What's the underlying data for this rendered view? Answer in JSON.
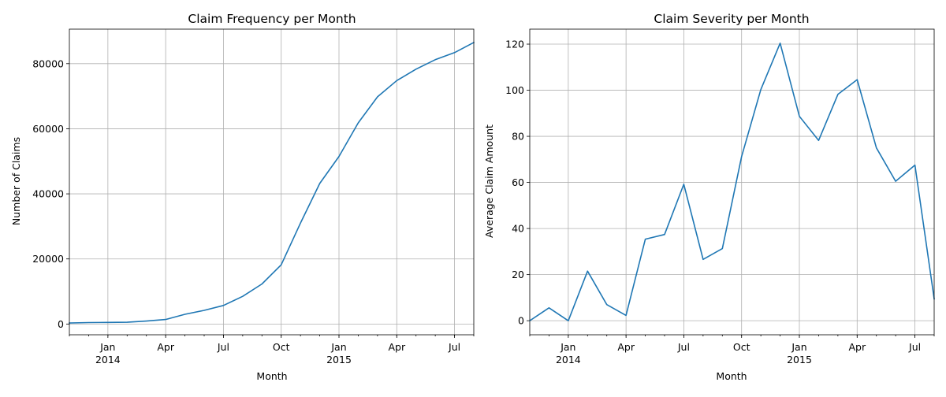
{
  "chart_data": [
    {
      "type": "line",
      "title": "Claim Frequency per Month",
      "xlabel": "Month",
      "ylabel": "Number of Claims",
      "x": [
        "2013-11",
        "2013-12",
        "2014-01",
        "2014-02",
        "2014-03",
        "2014-04",
        "2014-05",
        "2014-06",
        "2014-07",
        "2014-08",
        "2014-09",
        "2014-10",
        "2014-11",
        "2014-12",
        "2015-01",
        "2015-02",
        "2015-03",
        "2015-04",
        "2015-05",
        "2015-06",
        "2015-07",
        "2015-08"
      ],
      "series": [
        {
          "values": [
            300,
            450,
            500,
            550,
            900,
            1400,
            3000,
            4200,
            5700,
            8500,
            12300,
            18200,
            31000,
            43200,
            51500,
            61800,
            69800,
            74800,
            78300,
            81200,
            83400,
            86500
          ]
        }
      ],
      "xlim": [
        "2013-11",
        "2015-08"
      ],
      "ylim": [
        -3300,
        90600
      ],
      "yticks": [
        0,
        20000,
        40000,
        60000,
        80000
      ],
      "xticks": [
        {
          "date": "2014-01",
          "label": "Jan",
          "sublabel": "2014"
        },
        {
          "date": "2014-04",
          "label": "Apr",
          "sublabel": ""
        },
        {
          "date": "2014-07",
          "label": "Jul",
          "sublabel": ""
        },
        {
          "date": "2014-10",
          "label": "Oct",
          "sublabel": ""
        },
        {
          "date": "2015-01",
          "label": "Jan",
          "sublabel": "2015"
        },
        {
          "date": "2015-04",
          "label": "Apr",
          "sublabel": ""
        },
        {
          "date": "2015-07",
          "label": "Jul",
          "sublabel": ""
        }
      ],
      "grid": true,
      "color": "#1f77b4"
    },
    {
      "type": "line",
      "title": "Claim Severity per Month",
      "xlabel": "Month",
      "ylabel": "Average Claim Amount",
      "x": [
        "2013-11",
        "2013-12",
        "2014-01",
        "2014-02",
        "2014-03",
        "2014-04",
        "2014-05",
        "2014-06",
        "2014-07",
        "2014-08",
        "2014-09",
        "2014-10",
        "2014-11",
        "2014-12",
        "2015-01",
        "2015-02",
        "2015-03",
        "2015-04",
        "2015-05",
        "2015-06",
        "2015-07",
        "2015-08"
      ],
      "series": [
        {
          "values": [
            0,
            5.6,
            0,
            21.5,
            7.0,
            2.3,
            35.4,
            37.4,
            59.2,
            26.6,
            31.3,
            71.2,
            100.3,
            120.4,
            88.7,
            78.2,
            98.2,
            104.6,
            75.0,
            60.5,
            67.5,
            9.5
          ]
        }
      ],
      "xlim": [
        "2013-11",
        "2015-08"
      ],
      "ylim": [
        -6.1,
        126.5
      ],
      "yticks": [
        0,
        20,
        40,
        60,
        80,
        100,
        120
      ],
      "xticks": [
        {
          "date": "2014-01",
          "label": "Jan",
          "sublabel": "2014"
        },
        {
          "date": "2014-04",
          "label": "Apr",
          "sublabel": ""
        },
        {
          "date": "2014-07",
          "label": "Jul",
          "sublabel": ""
        },
        {
          "date": "2014-10",
          "label": "Oct",
          "sublabel": ""
        },
        {
          "date": "2015-01",
          "label": "Jan",
          "sublabel": "2015"
        },
        {
          "date": "2015-04",
          "label": "Apr",
          "sublabel": ""
        },
        {
          "date": "2015-07",
          "label": "Jul",
          "sublabel": ""
        }
      ],
      "grid": true,
      "color": "#1f77b4"
    }
  ]
}
